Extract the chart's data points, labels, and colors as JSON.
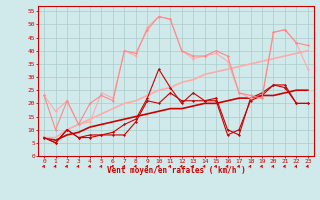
{
  "title": "",
  "xlabel": "Vent moyen/en rafales ( km/h )",
  "background_color": "#d0eaec",
  "grid_color": "#aacccc",
  "axis_color": "#cc0000",
  "xlim": [
    -0.5,
    23.5
  ],
  "ylim": [
    0,
    57
  ],
  "yticks": [
    0,
    5,
    10,
    15,
    20,
    25,
    30,
    35,
    40,
    45,
    50,
    55
  ],
  "xticks": [
    0,
    1,
    2,
    3,
    4,
    5,
    6,
    7,
    8,
    9,
    10,
    11,
    12,
    13,
    14,
    15,
    16,
    17,
    18,
    19,
    20,
    21,
    22,
    23
  ],
  "lines": [
    {
      "x": [
        0,
        1,
        2,
        3,
        4,
        5,
        6,
        7,
        8,
        9,
        10,
        11,
        12,
        13,
        14,
        15,
        16,
        17,
        18,
        19,
        20,
        21,
        22,
        23
      ],
      "y": [
        7,
        5,
        10,
        7,
        7,
        8,
        8,
        8,
        13,
        21,
        20,
        24,
        21,
        21,
        21,
        21,
        8,
        10,
        21,
        23,
        27,
        27,
        20,
        20
      ],
      "color": "#cc0000",
      "lw": 0.8,
      "marker": "D",
      "ms": 1.5,
      "zorder": 5
    },
    {
      "x": [
        0,
        1,
        2,
        3,
        4,
        5,
        6,
        7,
        8,
        9,
        10,
        11,
        12,
        13,
        14,
        15,
        16,
        17,
        18,
        19,
        20,
        21,
        22,
        23
      ],
      "y": [
        7,
        5,
        10,
        7,
        8,
        8,
        9,
        12,
        14,
        22,
        33,
        26,
        20,
        24,
        21,
        22,
        10,
        8,
        22,
        24,
        27,
        26,
        20,
        20
      ],
      "color": "#cc0000",
      "lw": 0.8,
      "marker": "D",
      "ms": 1.5,
      "zorder": 4
    },
    {
      "x": [
        0,
        1,
        2,
        3,
        4,
        5,
        6,
        7,
        8,
        9,
        10,
        11,
        12,
        13,
        14,
        15,
        16,
        17,
        18,
        19,
        20,
        21,
        22,
        23
      ],
      "y": [
        23,
        10,
        21,
        12,
        20,
        23,
        21,
        40,
        39,
        48,
        53,
        52,
        40,
        38,
        38,
        40,
        38,
        24,
        23,
        22,
        47,
        48,
        43,
        42
      ],
      "color": "#ff8888",
      "lw": 0.8,
      "marker": "D",
      "ms": 1.5,
      "zorder": 5
    },
    {
      "x": [
        0,
        1,
        2,
        3,
        4,
        5,
        6,
        7,
        8,
        9,
        10,
        11,
        12,
        13,
        14,
        15,
        16,
        17,
        18,
        19,
        20,
        21,
        22,
        23
      ],
      "y": [
        23,
        17,
        21,
        12,
        13,
        24,
        22,
        40,
        38,
        49,
        53,
        52,
        40,
        37,
        38,
        39,
        36,
        24,
        22,
        22,
        47,
        48,
        43,
        33
      ],
      "color": "#ffaaaa",
      "lw": 0.8,
      "marker": "D",
      "ms": 1.5,
      "zorder": 4
    },
    {
      "x": [
        0,
        1,
        2,
        3,
        4,
        5,
        6,
        7,
        8,
        9,
        10,
        11,
        12,
        13,
        14,
        15,
        16,
        17,
        18,
        19,
        20,
        21,
        22,
        23
      ],
      "y": [
        7,
        6,
        8,
        9,
        11,
        12,
        13,
        14,
        15,
        16,
        17,
        18,
        18,
        19,
        20,
        20,
        21,
        22,
        22,
        23,
        23,
        24,
        25,
        25
      ],
      "color": "#cc0000",
      "lw": 1.2,
      "marker": null,
      "ms": 0,
      "zorder": 2
    },
    {
      "x": [
        0,
        1,
        2,
        3,
        4,
        5,
        6,
        7,
        8,
        9,
        10,
        11,
        12,
        13,
        14,
        15,
        16,
        17,
        18,
        19,
        20,
        21,
        22,
        23
      ],
      "y": [
        7,
        7,
        10,
        12,
        14,
        16,
        18,
        20,
        21,
        23,
        25,
        26,
        28,
        29,
        31,
        32,
        33,
        34,
        35,
        36,
        37,
        38,
        39,
        40
      ],
      "color": "#ffaaaa",
      "lw": 1.2,
      "marker": null,
      "ms": 0,
      "zorder": 2
    }
  ],
  "font_color": "#cc0000"
}
